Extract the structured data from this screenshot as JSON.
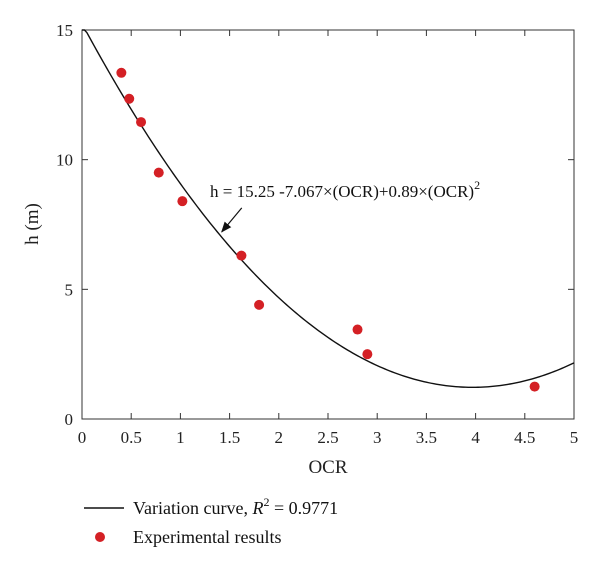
{
  "chart_data": {
    "type": "scatter",
    "title": "",
    "xlabel": "OCR",
    "ylabel": "h (m)",
    "xlim": [
      0,
      5
    ],
    "ylim": [
      0,
      15
    ],
    "x_ticks": [
      0,
      0.5,
      1,
      1.5,
      2,
      2.5,
      3,
      3.5,
      4,
      4.5,
      5
    ],
    "x_tick_labels": [
      "0",
      "0.5",
      "1",
      "1.5",
      "2",
      "2.5",
      "3",
      "3.5",
      "4",
      "4.5",
      "5"
    ],
    "y_ticks": [
      0,
      5,
      10,
      15
    ],
    "y_tick_labels": [
      "0",
      "5",
      "10",
      "15"
    ],
    "grid": false,
    "legend_position": "bottom-left, below plot",
    "series": [
      {
        "name": "Experimental results",
        "kind": "scatter",
        "color": "#d42025",
        "points": [
          {
            "x": 0.4,
            "y": 13.35
          },
          {
            "x": 0.48,
            "y": 12.35
          },
          {
            "x": 0.6,
            "y": 11.45
          },
          {
            "x": 0.78,
            "y": 9.5
          },
          {
            "x": 1.02,
            "y": 8.4
          },
          {
            "x": 1.62,
            "y": 6.3
          },
          {
            "x": 1.8,
            "y": 4.4
          },
          {
            "x": 2.8,
            "y": 3.45
          },
          {
            "x": 2.9,
            "y": 2.5
          },
          {
            "x": 4.6,
            "y": 1.25
          }
        ]
      },
      {
        "name": "Variation curve",
        "kind": "line",
        "color": "#111111",
        "equation": {
          "c0": 15.25,
          "c1": -7.067,
          "c2": 0.89
        },
        "x_range": [
          0,
          5
        ]
      }
    ],
    "annotation": {
      "prefix": "h = 15.25 -7.067×(OCR)+0.89×(OCR)",
      "superscript": "2",
      "arrow_target_x": 1.4
    },
    "legend": [
      {
        "marker": "line",
        "prefix": "Variation curve, ",
        "italic": "R",
        "sup": "2",
        "suffix": " = 0.9771"
      },
      {
        "marker": "dot",
        "text": "Experimental results"
      }
    ]
  }
}
